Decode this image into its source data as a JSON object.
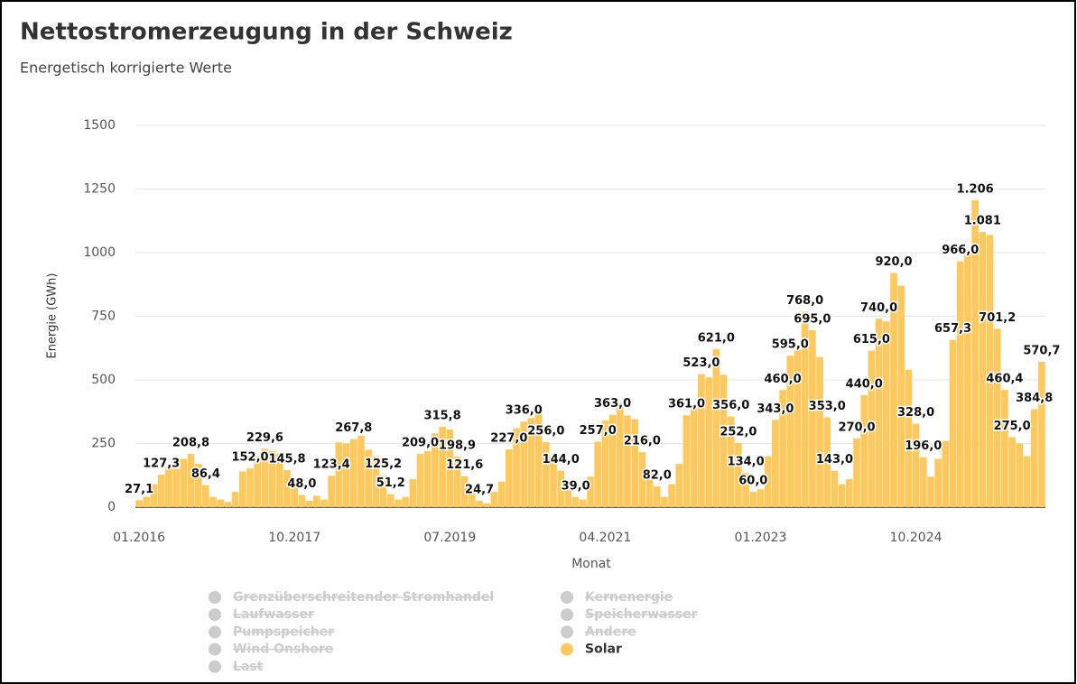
{
  "chart_data": {
    "type": "bar",
    "title": "Nettostromerzeugung in der Schweiz",
    "subtitle": "Energetisch korrigierte Werte",
    "y_label": "Energie (GWh)",
    "x_label": "Monat",
    "ylim": [
      0,
      1500
    ],
    "yticks": [
      0,
      250,
      500,
      750,
      1000,
      1250,
      1500
    ],
    "grid": true,
    "categories": [
      "01.2016",
      null,
      null,
      null,
      null,
      null,
      null,
      null,
      null,
      null,
      null,
      null,
      null,
      null,
      null,
      null,
      null,
      null,
      null,
      null,
      null,
      "10.2017",
      null,
      null,
      null,
      null,
      null,
      null,
      null,
      null,
      null,
      null,
      null,
      null,
      null,
      null,
      null,
      null,
      null,
      null,
      null,
      null,
      "07.2019",
      null,
      null,
      null,
      null,
      null,
      null,
      null,
      null,
      null,
      null,
      null,
      null,
      null,
      null,
      null,
      null,
      null,
      null,
      null,
      null,
      "04.2021",
      null,
      null,
      null,
      null,
      null,
      null,
      null,
      null,
      null,
      null,
      null,
      null,
      null,
      null,
      null,
      null,
      null,
      null,
      null,
      null,
      "01.2023",
      null,
      null,
      null,
      null,
      null,
      null,
      null,
      null,
      null,
      null,
      null,
      null,
      null,
      null,
      null,
      null,
      null,
      null,
      null,
      null,
      "10.2024",
      null,
      null,
      null,
      null,
      null,
      null,
      null,
      null,
      null,
      null,
      null,
      null,
      null,
      null,
      null,
      null,
      null
    ],
    "series": [
      {
        "name": "Solar",
        "color": "#fdc95e",
        "values": [
          27.1,
          40,
          90,
          127.3,
          155,
          150,
          190,
          208.8,
          170,
          86.4,
          40,
          30,
          20,
          60,
          140,
          152.0,
          200,
          229.6,
          220,
          210,
          145.8,
          100,
          48.0,
          25,
          45,
          30,
          123.4,
          255,
          250,
          267.8,
          280,
          225,
          200,
          125.2,
          51.2,
          30,
          40,
          110,
          209.0,
          220,
          290,
          315.8,
          305,
          198.9,
          121.6,
          60,
          24.7,
          15,
          60,
          100,
          227.0,
          310,
          336.0,
          350,
          385,
          256.0,
          200,
          144.0,
          80,
          39.0,
          30,
          120,
          257.0,
          340,
          363.0,
          410,
          360,
          345,
          216.0,
          150,
          82.0,
          40,
          90,
          170,
          361.0,
          400,
          523.0,
          510,
          621.0,
          520,
          356.0,
          252.0,
          134.0,
          60.0,
          70,
          200,
          343.0,
          460.0,
          595.0,
          620,
          768.0,
          695.0,
          590,
          353.0,
          143.0,
          90,
          110,
          270.0,
          440.0,
          615.0,
          740.0,
          730,
          920.0,
          870,
          540,
          328.0,
          196.0,
          120,
          190,
          260,
          657.3,
          966.0,
          1010,
          1206,
          1081,
          1070,
          701.2,
          460.4,
          275.0,
          250,
          200,
          384.8,
          570.7
        ],
        "value_labels": [
          "27,1",
          null,
          null,
          "127,3",
          null,
          null,
          null,
          "208,8",
          null,
          "86,4",
          null,
          null,
          null,
          null,
          null,
          "152,0",
          null,
          "229,6",
          null,
          null,
          "145,8",
          null,
          "48,0",
          null,
          null,
          null,
          "123,4",
          null,
          null,
          "267,8",
          null,
          null,
          null,
          "125,2",
          "51,2",
          null,
          null,
          null,
          "209,0",
          null,
          null,
          "315,8",
          null,
          "198,9",
          "121,6",
          null,
          "24,7",
          null,
          null,
          null,
          "227,0",
          null,
          "336,0",
          null,
          null,
          "256,0",
          null,
          "144,0",
          null,
          "39,0",
          null,
          null,
          "257,0",
          null,
          "363,0",
          null,
          null,
          null,
          "216,0",
          null,
          "82,0",
          null,
          null,
          null,
          "361,0",
          null,
          "523,0",
          null,
          "621,0",
          null,
          "356,0",
          "252,0",
          "134,0",
          "60,0",
          null,
          null,
          "343,0",
          "460,0",
          "595,0",
          null,
          "768,0",
          "695,0",
          null,
          "353,0",
          "143,0",
          null,
          null,
          "270,0",
          "440,0",
          "615,0",
          "740,0",
          null,
          "920,0",
          null,
          null,
          "328,0",
          "196,0",
          null,
          null,
          null,
          "657,3",
          "966,0",
          null,
          "1.206",
          "1.081",
          null,
          "701,2",
          "460,4",
          "275,0",
          null,
          null,
          "384,8",
          "570,7"
        ]
      }
    ],
    "hidden_series": [
      "Grenzüberschreitender Stromhandel",
      "Laufwasser",
      "Pumpspeicher",
      "Wind Onshore",
      "Last",
      "Kernenergie",
      "Speicherwasser",
      "Andere"
    ],
    "hidden_color": "#cccccc"
  }
}
